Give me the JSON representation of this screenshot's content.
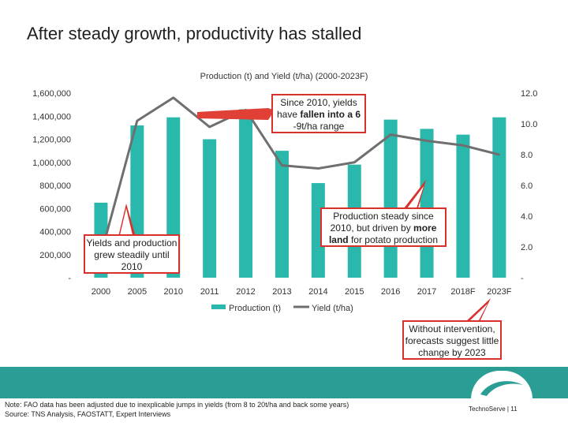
{
  "page": {
    "title": "After steady growth, productivity has stalled"
  },
  "chart_data": {
    "type": "bar",
    "title": "Production (t) and Yield (t/ha) (2000-2023F)",
    "categories": [
      "2000",
      "2005",
      "2010",
      "2011",
      "2012",
      "2013",
      "2014",
      "2015",
      "2016",
      "2017",
      "2018F",
      "2023F"
    ],
    "series": [
      {
        "name": "Production (t)",
        "type": "bar",
        "axis": "left",
        "color": "#2ab7ac",
        "values": [
          650000,
          1320000,
          1390000,
          1200000,
          1460000,
          1100000,
          820000,
          980000,
          1370000,
          1290000,
          1240000,
          1390000
        ]
      },
      {
        "name": "Yield (t/ha)",
        "type": "line",
        "axis": "right",
        "color": "#6f6f6f",
        "values": [
          1.5,
          10.2,
          11.7,
          9.8,
          10.9,
          7.3,
          7.1,
          7.5,
          9.3,
          8.9,
          8.6,
          8.0
        ]
      }
    ],
    "y_left": {
      "ylim": [
        0,
        1600000
      ],
      "ticks": [
        "-",
        "200,000",
        "400,000",
        "600,000",
        "800,000",
        "1,000,000",
        "1,200,000",
        "1,400,000",
        "1,600,000"
      ]
    },
    "y_right": {
      "ylim": [
        0,
        12
      ],
      "ticks": [
        "-",
        "2.0",
        "4.0",
        "6.0",
        "8.0",
        "10.0",
        "12.0"
      ]
    },
    "legend": {
      "position": "bottom"
    },
    "grid": false
  },
  "callouts": {
    "yield_range": {
      "line1": "Since 2010, yields",
      "line2a": "have ",
      "line2b": "fallen into a 6",
      "line3": "-9t/ha range"
    },
    "growth": {
      "line1": "Yields and production",
      "line2": "grew steadily until",
      "line3": "2010"
    },
    "production": {
      "line1": "Production steady since",
      "line2": "2010, but driven by ",
      "line2b": "more",
      "line3a": "land",
      "line3b": " for potato production"
    },
    "forecast": {
      "line1": "Without intervention,",
      "line2": "forecasts suggest little",
      "line3": "change by 2023"
    }
  },
  "footer": {
    "note": "Note: FAO data has been adjusted due to inexplicable jumps in yields (from 8 to 20t/ha and back some years)",
    "source": "Source: TNS Analysis, FAOSTATT, Expert Interviews",
    "brand": "TechnoServe",
    "page_sep": " | ",
    "page_number": "11",
    "accent_color": "#2a9e94"
  }
}
